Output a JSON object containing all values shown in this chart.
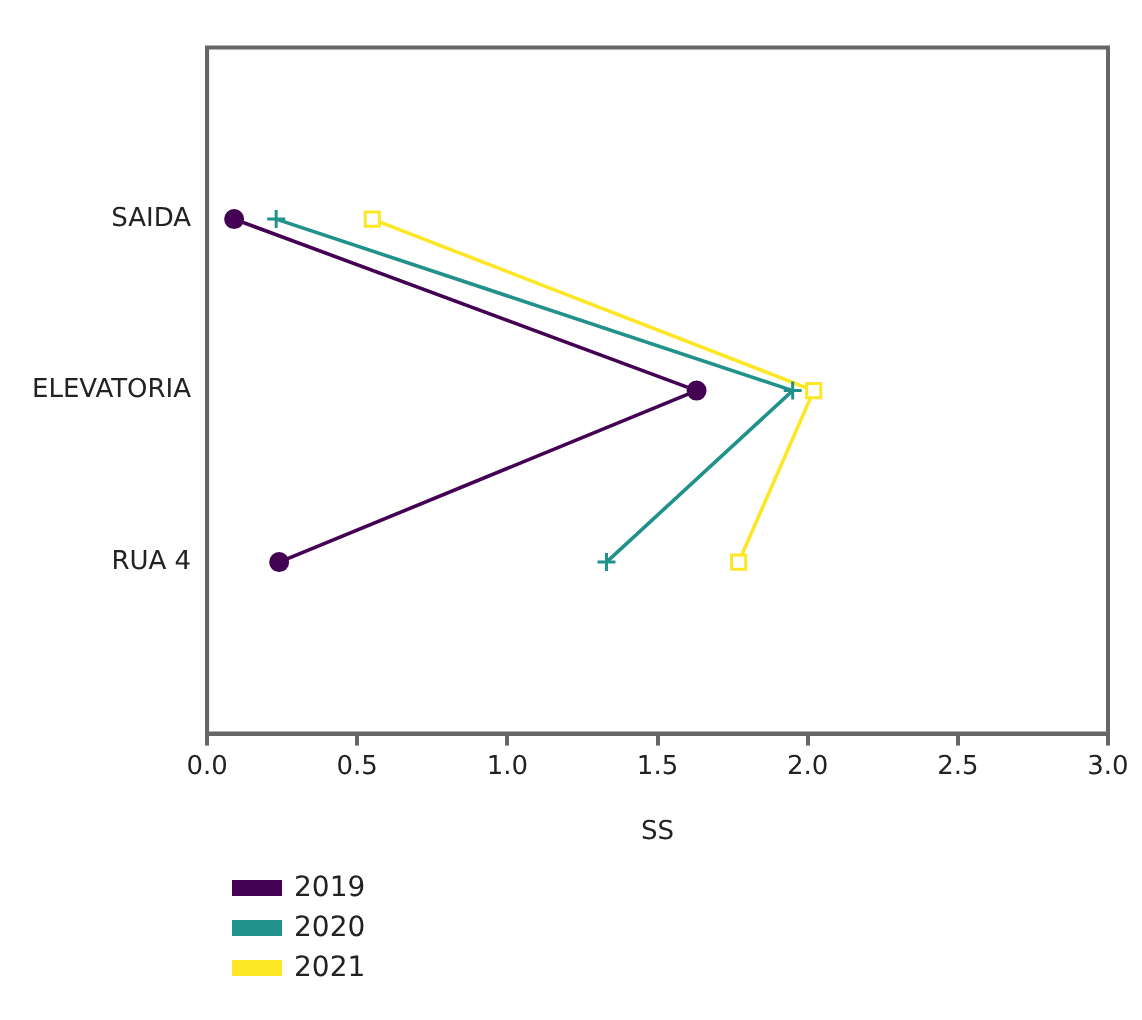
{
  "chart_data": {
    "type": "line",
    "xlabel": "SS",
    "categories": [
      "SAIDA",
      "ELEVATORIA",
      "RUA 4"
    ],
    "xlim": [
      0,
      3
    ],
    "xticks": [
      {
        "value": 0,
        "label": "0.0"
      },
      {
        "value": 0.5,
        "label": "0.5"
      },
      {
        "value": 1,
        "label": "1.0"
      },
      {
        "value": 1.5,
        "label": "1.5"
      },
      {
        "value": 2,
        "label": "2.0"
      },
      {
        "value": 2.5,
        "label": "2.5"
      },
      {
        "value": 3,
        "label": "3.0"
      }
    ],
    "orientation": "horizontal",
    "grid": false,
    "legend": "bottom left",
    "series": [
      {
        "name": "2019",
        "color": "#440154",
        "marker": "circle",
        "values": [
          0.09,
          1.63,
          0.24
        ]
      },
      {
        "name": "2020",
        "color": "#21918c",
        "marker": "cross",
        "values": [
          0.23,
          1.95,
          1.33
        ]
      },
      {
        "name": "2021",
        "color": "#fde725",
        "marker": "square",
        "values": [
          0.55,
          2.02,
          1.77
        ]
      }
    ]
  }
}
